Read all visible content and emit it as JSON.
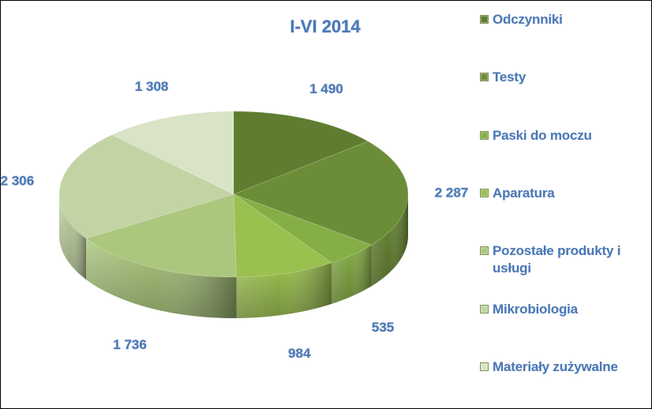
{
  "chart_data": {
    "type": "pie",
    "title": "I-VI 2014",
    "categories": [
      "Odczynniki",
      "Testy",
      "Paski do moczu",
      "Aparatura",
      "Pozostałe produkty i usługi",
      "Mikrobiologia",
      "Materiały zużywalne"
    ],
    "values": [
      1490,
      2287,
      535,
      984,
      1736,
      2306,
      1308
    ],
    "value_labels": [
      "1 490",
      "2 287",
      "535",
      "984",
      "1 736",
      "2 306",
      "1 308"
    ],
    "colors": [
      "#5f7d30",
      "#6c8d37",
      "#86ae46",
      "#9ac04f",
      "#abc77e",
      "#c3d4a4",
      "#d9e4c7"
    ],
    "style": "3d",
    "legend_position": "right"
  }
}
